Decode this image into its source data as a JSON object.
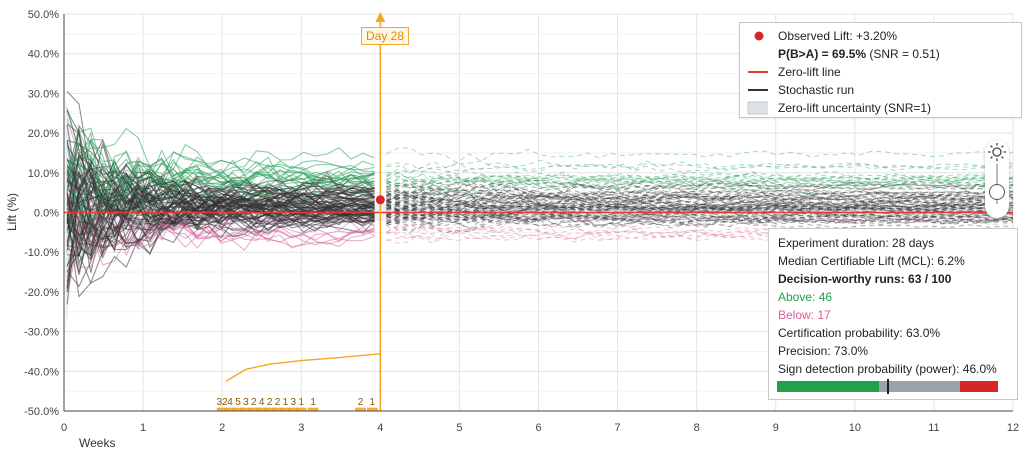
{
  "chart_data": {
    "type": "line",
    "xlabel": "Weeks",
    "ylabel": "Lift (%)",
    "xlim": [
      0,
      12
    ],
    "ylim": [
      -50,
      50
    ],
    "x_ticks": [
      "0",
      "1",
      "2",
      "3",
      "4",
      "5",
      "6",
      "7",
      "8",
      "9",
      "10",
      "11",
      "12"
    ],
    "y_ticks": [
      "50.0%",
      "40.0%",
      "30.0%",
      "20.0%",
      "10.0%",
      "0.0%",
      "-10.0%",
      "-20.0%",
      "-30.0%",
      "-40.0%",
      "-50.0%"
    ],
    "grid": true,
    "marker": {
      "label": "Day 28",
      "x": 4.0
    },
    "observed_point": {
      "x": 4.0,
      "y": 3.2
    },
    "zero_line_y": 0,
    "histogram": {
      "x": [
        2.0,
        2.1,
        2.2,
        2.3,
        2.4,
        2.5,
        2.6,
        2.7,
        2.8,
        2.9,
        3.0,
        3.15,
        3.25,
        3.4,
        3.55,
        3.75,
        3.9
      ],
      "counts": [
        32,
        4,
        5,
        3,
        2,
        4,
        2,
        2,
        1,
        3,
        1,
        1,
        null,
        null,
        null,
        2,
        1
      ],
      "labels": [
        "32",
        "4",
        "5",
        "3",
        "2",
        "4",
        "2",
        "2",
        "1",
        "3",
        "1",
        "1",
        "",
        "",
        "",
        "2",
        "1"
      ]
    },
    "power_curve": {
      "x": [
        2.05,
        2.3,
        2.6,
        3.0,
        3.5,
        4.0
      ],
      "y": [
        -42.5,
        -39.5,
        -38.2,
        -37.3,
        -36.5,
        -35.6
      ]
    }
  },
  "legend": {
    "observed": "Observed Lift: +3.20%",
    "pba_bold": "P(B>A) = 69.5%",
    "pba_rest": " (SNR = 0.51)",
    "zero_lift": "Zero-lift line",
    "stochastic": "Stochastic run",
    "uncertainty": "Zero-lift uncertainty (SNR=1)"
  },
  "stats": {
    "duration": "Experiment duration: 28 days",
    "mcl": "Median Certifiable Lift (MCL): 6.2%",
    "decision": "Decision-worthy runs: 63 / 100",
    "above": "Above: 46",
    "below": "Below: 17",
    "cert": "Certification probability: 63.0%",
    "precision": "Precision: 73.0%",
    "power": "Sign detection probability (power): 46.0%",
    "bar": {
      "green": 0.46,
      "gray": 0.37,
      "red": 0.17,
      "marker": 0.5
    }
  },
  "colors": {
    "green": "#2ca25f",
    "pink": "#d6609a",
    "dark": "#333333",
    "orange": "#f5a623",
    "zero": "#e33b2e",
    "bar_green": "#22a04a",
    "bar_gray": "#9aa3aa",
    "bar_red": "#d62728"
  }
}
